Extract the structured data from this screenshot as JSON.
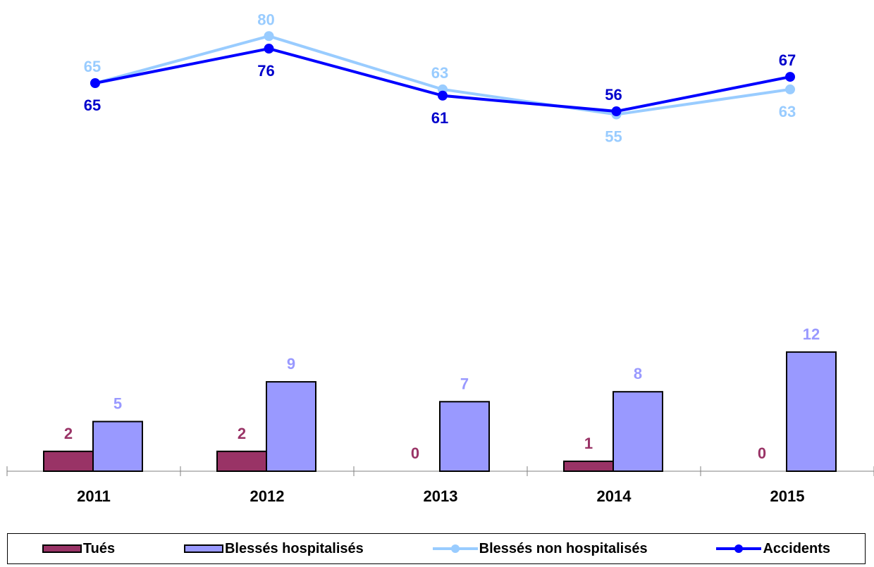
{
  "chart_data": {
    "type": "bar+line",
    "categories": [
      "2011",
      "2012",
      "2013",
      "2014",
      "2015"
    ],
    "bar_series": [
      {
        "name": "Tués",
        "values": [
          2,
          2,
          0,
          1,
          0
        ],
        "color": "#993366",
        "label_color": "#993366"
      },
      {
        "name": "Blessés hospitalisés",
        "values": [
          5,
          9,
          7,
          8,
          12
        ],
        "color": "#9999ff",
        "label_color": "#9999ff"
      }
    ],
    "line_series": [
      {
        "name": "Blessés non hospitalisés",
        "values": [
          65,
          80,
          63,
          55,
          63
        ],
        "color": "#99ccff",
        "label_color": "#99ccff"
      },
      {
        "name": "Accidents",
        "values": [
          65,
          76,
          61,
          56,
          67
        ],
        "color": "#0000ff",
        "label_color": "#0000cc"
      }
    ],
    "legend_position": "bottom",
    "grid": false
  }
}
